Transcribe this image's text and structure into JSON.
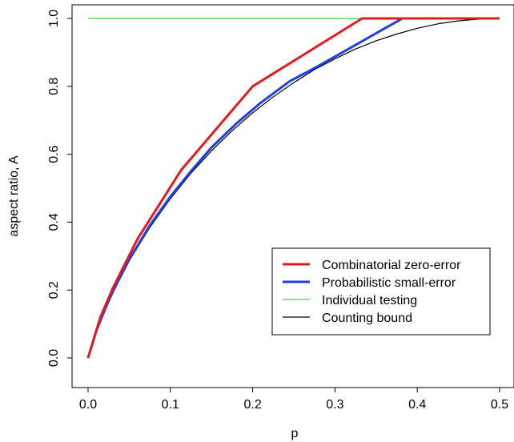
{
  "chart_data": {
    "type": "line",
    "title": "",
    "xlabel": "p",
    "ylabel": "aspect ratio, A",
    "xlim": [
      0,
      0.5
    ],
    "ylim": [
      0,
      1
    ],
    "x_ticks": [
      0.0,
      0.1,
      0.2,
      0.3,
      0.4,
      0.5
    ],
    "x_tick_labels": [
      "0.0",
      "0.1",
      "0.2",
      "0.3",
      "0.4",
      "0.5"
    ],
    "y_ticks": [
      0.0,
      0.2,
      0.4,
      0.6,
      0.8,
      1.0
    ],
    "y_tick_labels": [
      "0.0",
      "0.2",
      "0.4",
      "0.6",
      "0.8",
      "1.0"
    ],
    "grid": false,
    "legend_position": "bottom-right",
    "series": [
      {
        "name": "Combinatorial zero-error",
        "color": "#e41a1c",
        "line_width": "thick",
        "x": [
          0.0,
          0.015,
          0.03,
          0.06,
          0.113,
          0.2,
          0.333,
          0.5
        ],
        "y": [
          0.0,
          0.12,
          0.205,
          0.35,
          0.553,
          0.8,
          1.0,
          1.0
        ]
      },
      {
        "name": "Probabilistic small-error",
        "color": "#1f3fe0",
        "line_width": "thick",
        "x": [
          0.0,
          0.01,
          0.02,
          0.03,
          0.05,
          0.075,
          0.1,
          0.125,
          0.15,
          0.18,
          0.21,
          0.245,
          0.28,
          0.32,
          0.36,
          0.382,
          0.5
        ],
        "y": [
          0.0,
          0.08,
          0.14,
          0.195,
          0.29,
          0.39,
          0.475,
          0.55,
          0.62,
          0.69,
          0.752,
          0.815,
          0.86,
          0.915,
          0.97,
          1.0,
          1.0
        ]
      },
      {
        "name": "Individual testing",
        "color": "#33dd33",
        "line_width": "thin",
        "x": [
          0.0,
          0.5
        ],
        "y": [
          1.0,
          1.0
        ]
      },
      {
        "name": "Counting bound",
        "color": "#000000",
        "line_width": "thin",
        "x": [
          0.0,
          0.005,
          0.01,
          0.02,
          0.03,
          0.05,
          0.075,
          0.1,
          0.125,
          0.15,
          0.175,
          0.2,
          0.225,
          0.25,
          0.275,
          0.3,
          0.325,
          0.35,
          0.375,
          0.4,
          0.425,
          0.45,
          0.475,
          0.5
        ],
        "y": [
          0.0,
          0.046,
          0.081,
          0.141,
          0.194,
          0.286,
          0.384,
          0.469,
          0.544,
          0.61,
          0.669,
          0.722,
          0.769,
          0.811,
          0.849,
          0.881,
          0.91,
          0.934,
          0.954,
          0.971,
          0.984,
          0.993,
          0.998,
          1.0
        ]
      }
    ]
  }
}
